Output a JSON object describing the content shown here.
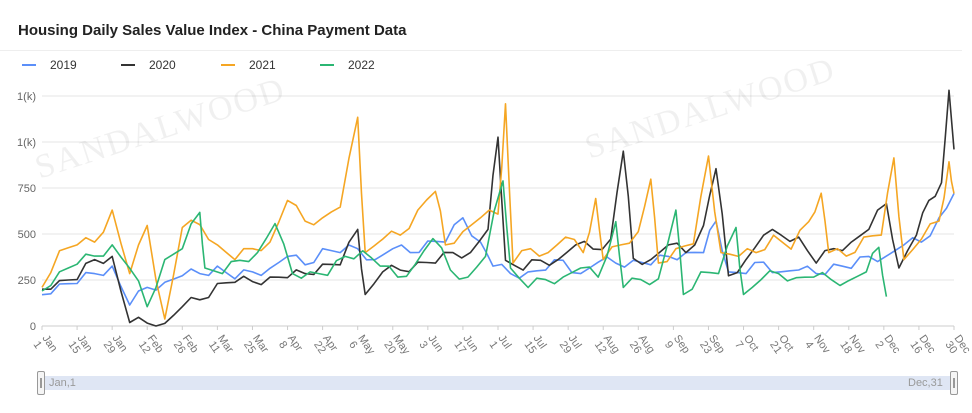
{
  "title": "Housing Daily Sales Value Index - China Payment Data",
  "legend": [
    {
      "name": "2019",
      "color": "#5b8ff9"
    },
    {
      "name": "2020",
      "color": "#333333"
    },
    {
      "name": "2021",
      "color": "#f5a623"
    },
    {
      "name": "2022",
      "color": "#2bb673"
    }
  ],
  "slider": {
    "start_label": "Jan,1",
    "end_label": "Dec,31"
  },
  "watermark": "SANDALWOOD",
  "chart_data": {
    "type": "line",
    "title": "Housing Daily Sales Value Index - China Payment Data",
    "ylim": [
      0,
      1000
    ],
    "ytick_labels": [
      "0",
      "250",
      "500",
      "750",
      "1(k)",
      "1(k)"
    ],
    "ytick_values": [
      0,
      250,
      500,
      750,
      1000,
      1250
    ],
    "x_tick_labels": [
      "Jan 1",
      "Jan 15",
      "Jan 29",
      "Feb 12",
      "Feb 26",
      "Mar 11",
      "Mar 25",
      "Apr 8",
      "Apr 22",
      "May 6",
      "May 20",
      "Jun 3",
      "Jun 17",
      "Jul 1",
      "Jul 15",
      "Jul 29",
      "Aug 12",
      "Aug 26",
      "Sep 9",
      "Sep 23",
      "Oct 7",
      "Oct 21",
      "Nov 4",
      "Nov 18",
      "Dec 2",
      "Dec 16",
      "Dec 30"
    ],
    "series": [
      {
        "name": "2019",
        "color": "#5b8ff9",
        "points": [
          [
            1,
            170
          ],
          [
            8,
            240
          ],
          [
            15,
            220
          ],
          [
            22,
            300
          ],
          [
            29,
            310
          ],
          [
            36,
            120
          ],
          [
            43,
            200
          ],
          [
            50,
            250
          ],
          [
            57,
            260
          ],
          [
            64,
            300
          ],
          [
            71,
            310
          ],
          [
            78,
            270
          ],
          [
            85,
            280
          ],
          [
            92,
            330
          ],
          [
            99,
            360
          ],
          [
            106,
            350
          ],
          [
            113,
            400
          ],
          [
            120,
            420
          ],
          [
            127,
            400
          ],
          [
            134,
            380
          ],
          [
            141,
            400
          ],
          [
            148,
            420
          ],
          [
            155,
            440
          ],
          [
            162,
            480
          ],
          [
            169,
            560
          ],
          [
            176,
            480
          ],
          [
            181,
            310
          ],
          [
            188,
            300
          ],
          [
            195,
            280
          ],
          [
            202,
            320
          ],
          [
            209,
            340
          ],
          [
            216,
            300
          ],
          [
            223,
            330
          ],
          [
            230,
            360
          ],
          [
            237,
            340
          ],
          [
            244,
            350
          ],
          [
            251,
            360
          ],
          [
            258,
            420
          ],
          [
            265,
            380
          ],
          [
            270,
            600
          ],
          [
            275,
            280
          ],
          [
            282,
            300
          ],
          [
            289,
            330
          ],
          [
            296,
            310
          ],
          [
            303,
            290
          ],
          [
            310,
            300
          ],
          [
            317,
            320
          ],
          [
            324,
            330
          ],
          [
            331,
            360
          ],
          [
            338,
            400
          ],
          [
            345,
            420
          ],
          [
            352,
            480
          ],
          [
            359,
            560
          ],
          [
            365,
            720
          ]
        ]
      },
      {
        "name": "2020",
        "color": "#333333",
        "points": [
          [
            1,
            200
          ],
          [
            8,
            260
          ],
          [
            15,
            240
          ],
          [
            22,
            380
          ],
          [
            29,
            360
          ],
          [
            36,
            20
          ],
          [
            43,
            15
          ],
          [
            50,
            15
          ],
          [
            57,
            100
          ],
          [
            64,
            150
          ],
          [
            71,
            220
          ],
          [
            78,
            250
          ],
          [
            85,
            230
          ],
          [
            92,
            280
          ],
          [
            99,
            250
          ],
          [
            106,
            300
          ],
          [
            113,
            320
          ],
          [
            120,
            350
          ],
          [
            127,
            500
          ],
          [
            130,
            180
          ],
          [
            137,
            280
          ],
          [
            144,
            320
          ],
          [
            151,
            330
          ],
          [
            158,
            360
          ],
          [
            165,
            380
          ],
          [
            172,
            420
          ],
          [
            179,
            500
          ],
          [
            183,
            1080
          ],
          [
            186,
            340
          ],
          [
            193,
            320
          ],
          [
            200,
            340
          ],
          [
            207,
            380
          ],
          [
            214,
            420
          ],
          [
            221,
            440
          ],
          [
            228,
            450
          ],
          [
            233,
            1000
          ],
          [
            237,
            350
          ],
          [
            244,
            380
          ],
          [
            251,
            420
          ],
          [
            258,
            420
          ],
          [
            265,
            520
          ],
          [
            270,
            900
          ],
          [
            275,
            260
          ],
          [
            282,
            380
          ],
          [
            289,
            470
          ],
          [
            296,
            520
          ],
          [
            303,
            460
          ],
          [
            310,
            360
          ],
          [
            317,
            400
          ],
          [
            324,
            480
          ],
          [
            331,
            500
          ],
          [
            338,
            700
          ],
          [
            343,
            300
          ],
          [
            350,
            520
          ],
          [
            355,
            650
          ],
          [
            360,
            820
          ],
          [
            363,
            1220
          ],
          [
            365,
            960
          ]
        ]
      },
      {
        "name": "2021",
        "color": "#f5a623",
        "points": [
          [
            1,
            210
          ],
          [
            8,
            430
          ],
          [
            15,
            420
          ],
          [
            22,
            480
          ],
          [
            29,
            600
          ],
          [
            36,
            300
          ],
          [
            43,
            520
          ],
          [
            50,
            40
          ],
          [
            57,
            510
          ],
          [
            64,
            580
          ],
          [
            71,
            420
          ],
          [
            78,
            380
          ],
          [
            85,
            400
          ],
          [
            92,
            480
          ],
          [
            99,
            650
          ],
          [
            106,
            600
          ],
          [
            113,
            560
          ],
          [
            120,
            680
          ],
          [
            127,
            1080
          ],
          [
            130,
            420
          ],
          [
            137,
            450
          ],
          [
            144,
            520
          ],
          [
            151,
            600
          ],
          [
            158,
            770
          ],
          [
            162,
            420
          ],
          [
            169,
            540
          ],
          [
            176,
            560
          ],
          [
            183,
            640
          ],
          [
            186,
            1150
          ],
          [
            189,
            360
          ],
          [
            196,
            400
          ],
          [
            203,
            420
          ],
          [
            210,
            460
          ],
          [
            217,
            420
          ],
          [
            222,
            660
          ],
          [
            225,
            380
          ],
          [
            232,
            420
          ],
          [
            239,
            540
          ],
          [
            244,
            760
          ],
          [
            247,
            360
          ],
          [
            254,
            400
          ],
          [
            261,
            470
          ],
          [
            267,
            880
          ],
          [
            272,
            420
          ],
          [
            279,
            360
          ],
          [
            286,
            420
          ],
          [
            293,
            470
          ],
          [
            300,
            440
          ],
          [
            307,
            540
          ],
          [
            312,
            760
          ],
          [
            315,
            380
          ],
          [
            322,
            400
          ],
          [
            329,
            460
          ],
          [
            336,
            520
          ],
          [
            341,
            870
          ],
          [
            345,
            380
          ],
          [
            352,
            450
          ],
          [
            359,
            600
          ],
          [
            363,
            850
          ],
          [
            365,
            720
          ]
        ]
      },
      {
        "name": "2022",
        "color": "#2bb673",
        "points": [
          [
            1,
            190
          ],
          [
            8,
            310
          ],
          [
            15,
            320
          ],
          [
            22,
            400
          ],
          [
            29,
            420
          ],
          [
            36,
            330
          ],
          [
            43,
            100
          ],
          [
            50,
            380
          ],
          [
            57,
            400
          ],
          [
            64,
            650
          ],
          [
            66,
            300
          ],
          [
            73,
            300
          ],
          [
            80,
            340
          ],
          [
            87,
            420
          ],
          [
            94,
            530
          ],
          [
            101,
            300
          ],
          [
            108,
            280
          ],
          [
            115,
            290
          ],
          [
            122,
            360
          ],
          [
            129,
            430
          ],
          [
            136,
            310
          ],
          [
            143,
            280
          ],
          [
            150,
            320
          ],
          [
            157,
            500
          ],
          [
            164,
            290
          ],
          [
            171,
            280
          ],
          [
            178,
            360
          ],
          [
            185,
            830
          ],
          [
            188,
            300
          ],
          [
            195,
            220
          ],
          [
            202,
            240
          ],
          [
            209,
            280
          ],
          [
            216,
            300
          ],
          [
            223,
            280
          ],
          [
            230,
            540
          ],
          [
            233,
            220
          ],
          [
            240,
            240
          ],
          [
            247,
            270
          ],
          [
            254,
            600
          ],
          [
            257,
            180
          ],
          [
            264,
            280
          ],
          [
            271,
            300
          ],
          [
            278,
            510
          ],
          [
            281,
            180
          ],
          [
            288,
            240
          ],
          [
            295,
            300
          ],
          [
            302,
            250
          ],
          [
            309,
            280
          ],
          [
            316,
            240
          ],
          [
            323,
            260
          ],
          [
            330,
            280
          ],
          [
            335,
            450
          ],
          [
            338,
            160
          ]
        ]
      }
    ]
  }
}
